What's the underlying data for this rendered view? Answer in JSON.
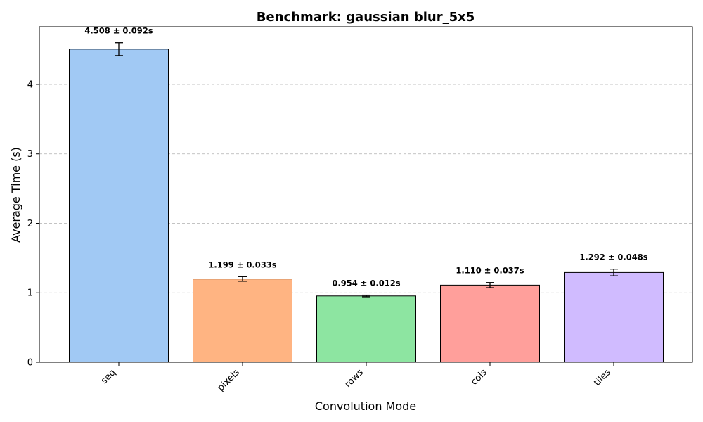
{
  "chart_data": {
    "type": "bar",
    "title": "Benchmark: gaussian blur_5x5",
    "xlabel": "Convolution Mode",
    "ylabel": "Average Time (s)",
    "categories": [
      "seq",
      "pixels",
      "rows",
      "cols",
      "tiles"
    ],
    "values": [
      4.508,
      1.199,
      0.954,
      1.11,
      1.292
    ],
    "errors": [
      0.092,
      0.033,
      0.012,
      0.037,
      0.048
    ],
    "data_labels": [
      "4.508 ± 0.092s",
      "1.199 ± 0.033s",
      "0.954 ± 0.012s",
      "1.110 ± 0.037s",
      "1.292 ± 0.048s"
    ],
    "colors": [
      "#a1c9f4",
      "#ffb482",
      "#8de5a1",
      "#ff9f9b",
      "#d0bbff"
    ],
    "ylim": [
      0,
      4.83
    ],
    "yticks": [
      0,
      1,
      2,
      3,
      4
    ],
    "ytick_labels": [
      "0",
      "1",
      "2",
      "3",
      "4"
    ],
    "grid": "y-dashed",
    "legend": "none"
  }
}
